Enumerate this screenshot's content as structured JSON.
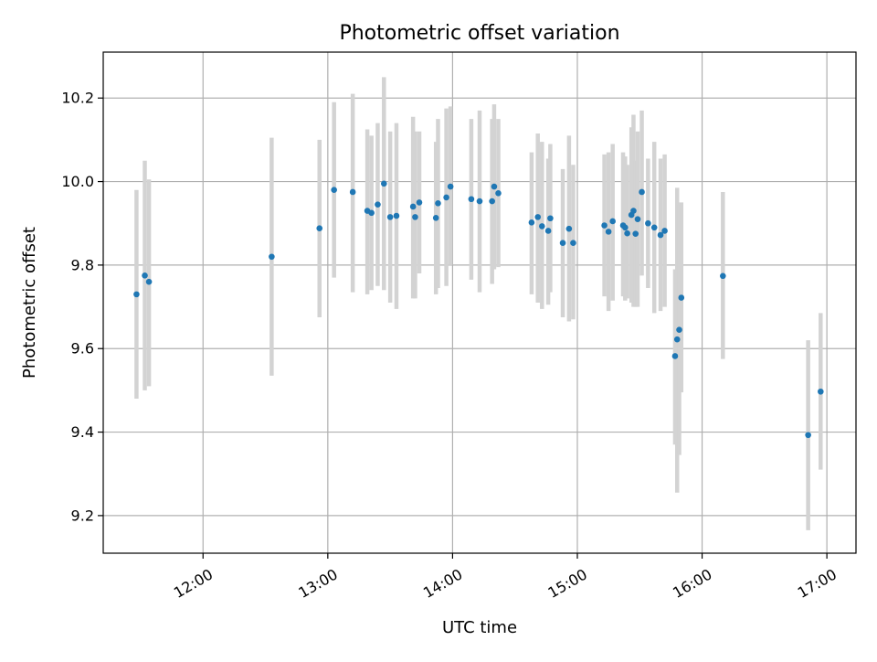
{
  "chart_data": {
    "type": "scatter",
    "title": "Photometric offset variation",
    "xlabel": "UTC time",
    "ylabel": "Photometric offset",
    "x_ticks": [
      "12:00",
      "13:00",
      "14:00",
      "15:00",
      "16:00",
      "17:00"
    ],
    "y_ticks": [
      "9.2",
      "9.4",
      "9.6",
      "9.8",
      "10.0",
      "10.2"
    ],
    "xlim": [
      "11:12",
      "17:14"
    ],
    "ylim": [
      9.11,
      10.31
    ],
    "grid": true,
    "colors": {
      "marker": "#1f77b4",
      "errorbar": "#d3d3d3",
      "grid": "#b0b0b0"
    },
    "points": [
      {
        "t": "11:28",
        "y": 9.73,
        "lo": 9.48,
        "hi": 9.98
      },
      {
        "t": "11:32",
        "y": 9.775,
        "lo": 9.5,
        "hi": 10.05
      },
      {
        "t": "11:34",
        "y": 9.76,
        "lo": 9.51,
        "hi": 10.005
      },
      {
        "t": "12:33",
        "y": 9.82,
        "lo": 9.535,
        "hi": 10.105
      },
      {
        "t": "12:56",
        "y": 9.888,
        "lo": 9.675,
        "hi": 10.1
      },
      {
        "t": "13:03",
        "y": 9.98,
        "lo": 9.77,
        "hi": 10.19
      },
      {
        "t": "13:12",
        "y": 9.975,
        "lo": 9.735,
        "hi": 10.21
      },
      {
        "t": "13:19",
        "y": 9.93,
        "lo": 9.73,
        "hi": 10.125
      },
      {
        "t": "13:21",
        "y": 9.925,
        "lo": 9.74,
        "hi": 10.11
      },
      {
        "t": "13:24",
        "y": 9.945,
        "lo": 9.75,
        "hi": 10.14
      },
      {
        "t": "13:27",
        "y": 9.995,
        "lo": 9.74,
        "hi": 10.25
      },
      {
        "t": "13:30",
        "y": 9.915,
        "lo": 9.71,
        "hi": 10.12
      },
      {
        "t": "13:33",
        "y": 9.918,
        "lo": 9.695,
        "hi": 10.14
      },
      {
        "t": "13:41",
        "y": 9.94,
        "lo": 9.72,
        "hi": 10.155
      },
      {
        "t": "13:42",
        "y": 9.915,
        "lo": 9.72,
        "hi": 10.12
      },
      {
        "t": "13:44",
        "y": 9.95,
        "lo": 9.78,
        "hi": 10.12
      },
      {
        "t": "13:52",
        "y": 9.913,
        "lo": 9.73,
        "hi": 10.095
      },
      {
        "t": "13:53",
        "y": 9.948,
        "lo": 9.745,
        "hi": 10.15
      },
      {
        "t": "13:57",
        "y": 9.962,
        "lo": 9.75,
        "hi": 10.175
      },
      {
        "t": "13:59",
        "y": 9.988,
        "lo": 9.8,
        "hi": 10.18
      },
      {
        "t": "14:09",
        "y": 9.958,
        "lo": 9.765,
        "hi": 10.15
      },
      {
        "t": "14:13",
        "y": 9.953,
        "lo": 9.735,
        "hi": 10.17
      },
      {
        "t": "14:19",
        "y": 9.953,
        "lo": 9.755,
        "hi": 10.15
      },
      {
        "t": "14:20",
        "y": 9.988,
        "lo": 9.79,
        "hi": 10.185
      },
      {
        "t": "14:22",
        "y": 9.972,
        "lo": 9.795,
        "hi": 10.15
      },
      {
        "t": "14:38",
        "y": 9.902,
        "lo": 9.73,
        "hi": 10.07
      },
      {
        "t": "14:41",
        "y": 9.915,
        "lo": 9.71,
        "hi": 10.115
      },
      {
        "t": "14:43",
        "y": 9.893,
        "lo": 9.695,
        "hi": 10.095
      },
      {
        "t": "14:46",
        "y": 9.882,
        "lo": 9.705,
        "hi": 10.055
      },
      {
        "t": "14:47",
        "y": 9.912,
        "lo": 9.735,
        "hi": 10.09
      },
      {
        "t": "14:53",
        "y": 9.853,
        "lo": 9.675,
        "hi": 10.03
      },
      {
        "t": "14:56",
        "y": 9.887,
        "lo": 9.665,
        "hi": 10.11
      },
      {
        "t": "14:58",
        "y": 9.853,
        "lo": 9.67,
        "hi": 10.04
      },
      {
        "t": "15:13",
        "y": 9.895,
        "lo": 9.725,
        "hi": 10.065
      },
      {
        "t": "15:15",
        "y": 9.88,
        "lo": 9.69,
        "hi": 10.07
      },
      {
        "t": "15:17",
        "y": 9.905,
        "lo": 9.715,
        "hi": 10.09
      },
      {
        "t": "15:22",
        "y": 9.895,
        "lo": 9.725,
        "hi": 10.07
      },
      {
        "t": "15:23",
        "y": 9.89,
        "lo": 9.715,
        "hi": 10.06
      },
      {
        "t": "15:24",
        "y": 9.876,
        "lo": 9.72,
        "hi": 10.04
      },
      {
        "t": "15:26",
        "y": 9.92,
        "lo": 9.71,
        "hi": 10.13
      },
      {
        "t": "15:27",
        "y": 9.93,
        "lo": 9.7,
        "hi": 10.16
      },
      {
        "t": "15:28",
        "y": 9.875,
        "lo": 9.7,
        "hi": 10.05
      },
      {
        "t": "15:29",
        "y": 9.91,
        "lo": 9.7,
        "hi": 10.12
      },
      {
        "t": "15:31",
        "y": 9.975,
        "lo": 9.775,
        "hi": 10.17
      },
      {
        "t": "15:34",
        "y": 9.9,
        "lo": 9.745,
        "hi": 10.055
      },
      {
        "t": "15:37",
        "y": 9.89,
        "lo": 9.685,
        "hi": 10.095
      },
      {
        "t": "15:40",
        "y": 9.872,
        "lo": 9.69,
        "hi": 10.055
      },
      {
        "t": "15:42",
        "y": 9.882,
        "lo": 9.7,
        "hi": 10.065
      },
      {
        "t": "15:47",
        "y": 9.582,
        "lo": 9.37,
        "hi": 9.79
      },
      {
        "t": "15:48",
        "y": 9.622,
        "lo": 9.255,
        "hi": 9.985
      },
      {
        "t": "15:49",
        "y": 9.645,
        "lo": 9.345,
        "hi": 9.945
      },
      {
        "t": "15:50",
        "y": 9.722,
        "lo": 9.495,
        "hi": 9.95
      },
      {
        "t": "16:10",
        "y": 9.774,
        "lo": 9.575,
        "hi": 9.975
      },
      {
        "t": "16:51",
        "y": 9.393,
        "lo": 9.165,
        "hi": 9.62
      },
      {
        "t": "16:57",
        "y": 9.497,
        "lo": 9.31,
        "hi": 9.685
      }
    ]
  }
}
